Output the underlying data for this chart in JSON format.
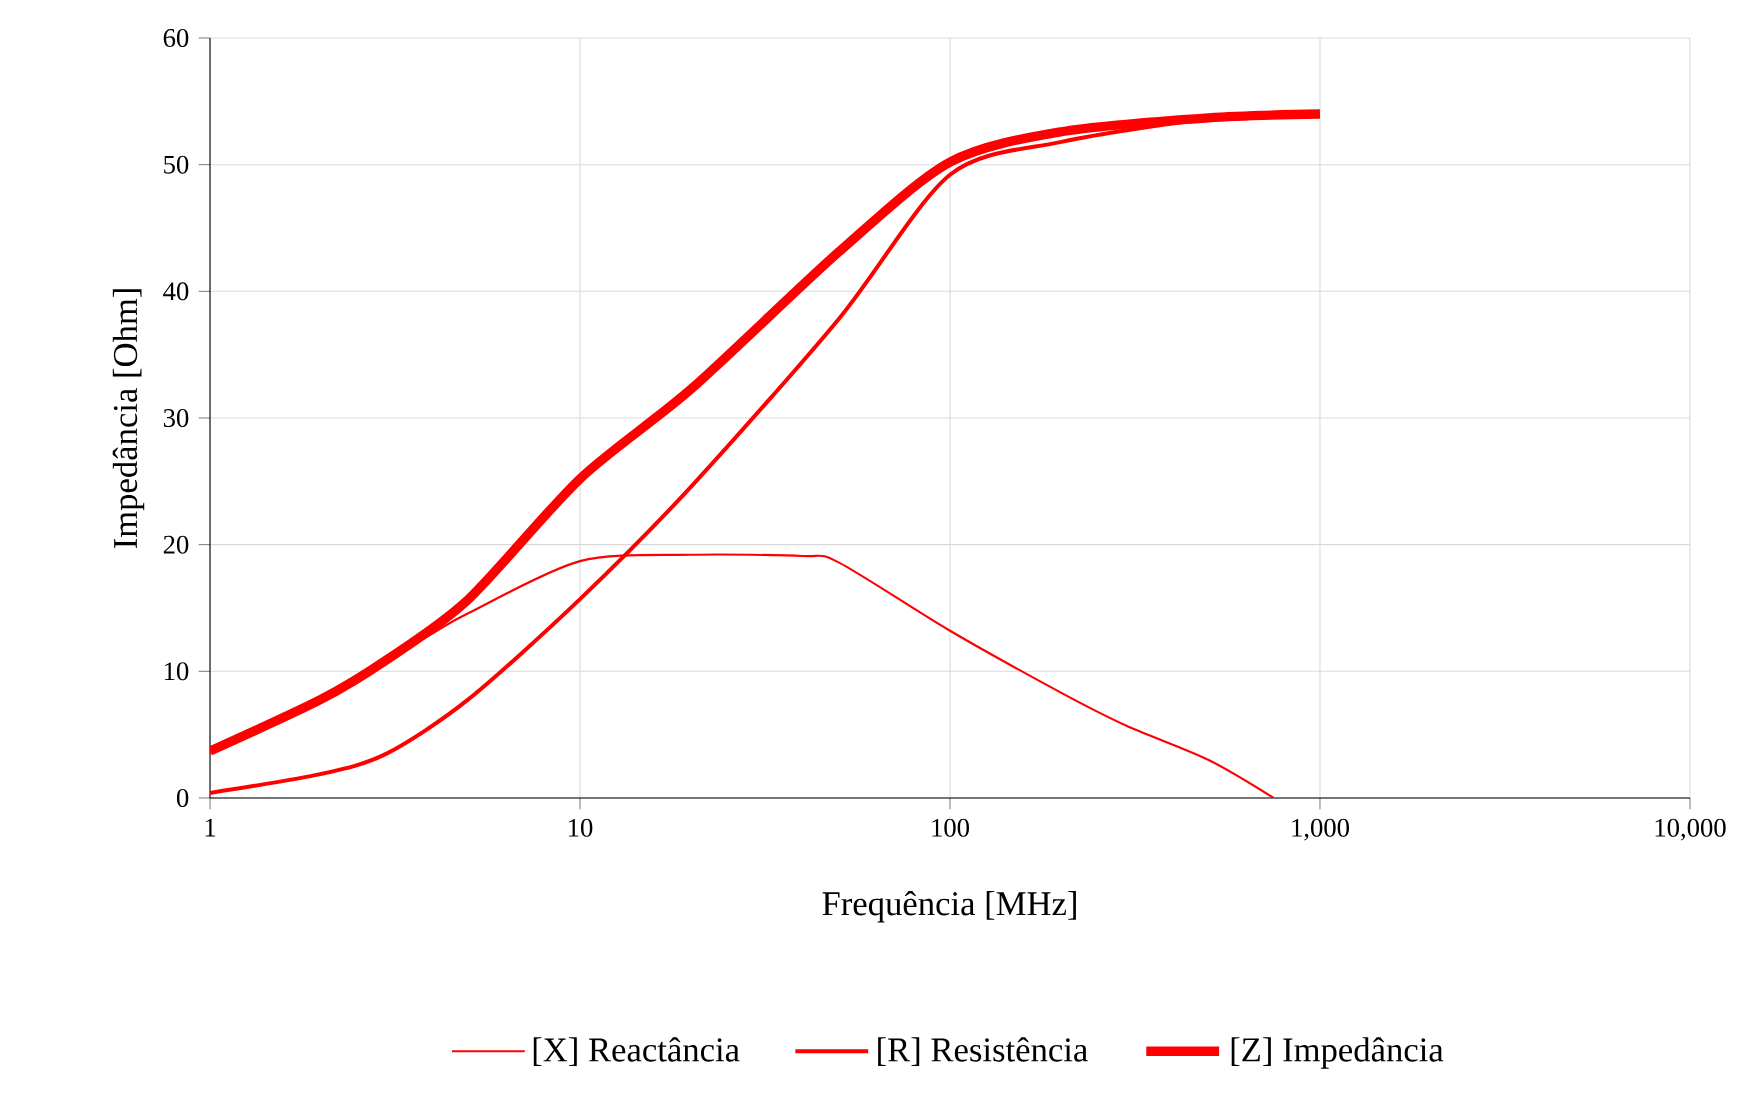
{
  "chart_data": {
    "type": "line",
    "xlabel": "Frequência [MHz]",
    "ylabel": "Impedância [Ohm]",
    "log": "x",
    "xlim": [
      1,
      10000
    ],
    "ylim": [
      0,
      60
    ],
    "xticks": [
      1,
      10,
      100,
      {
        "value": 1000,
        "label": "1,000"
      },
      {
        "value": 10000,
        "label": "10,000"
      }
    ],
    "yticks": [
      0,
      10,
      20,
      30,
      40,
      50,
      60
    ],
    "grid": true,
    "legend": "bottom",
    "line_style": "solid",
    "marker": "none",
    "series": [
      {
        "name": "[X] Reactância",
        "color": "#ff0000",
        "x": [
          1,
          2,
          3,
          4,
          5,
          10,
          20,
          40,
          50,
          100,
          200,
          300,
          500,
          750
        ],
        "values": [
          3.6,
          7.8,
          10.9,
          13,
          14.6,
          18.7,
          19.2,
          19.1,
          18.6,
          13.2,
          8.3,
          5.7,
          3.0,
          0
        ]
      },
      {
        "name": "[R] Resistência",
        "color": "#ff0000",
        "x": [
          1,
          2,
          3,
          5,
          10,
          20,
          50,
          100,
          200,
          500,
          1000
        ],
        "values": [
          0.4,
          1.9,
          3.5,
          7.8,
          15.7,
          24.6,
          37.8,
          49.2,
          51.8,
          53.6,
          54
        ]
      },
      {
        "name": "[Z] Impedância",
        "color": "#ff0000",
        "x": [
          1,
          2,
          3,
          5,
          10,
          20,
          50,
          100,
          200,
          500,
          1000
        ],
        "values": [
          3.7,
          7.8,
          10.9,
          15.7,
          25.2,
          32.3,
          43.1,
          50.2,
          52.6,
          53.7,
          54
        ]
      }
    ]
  }
}
